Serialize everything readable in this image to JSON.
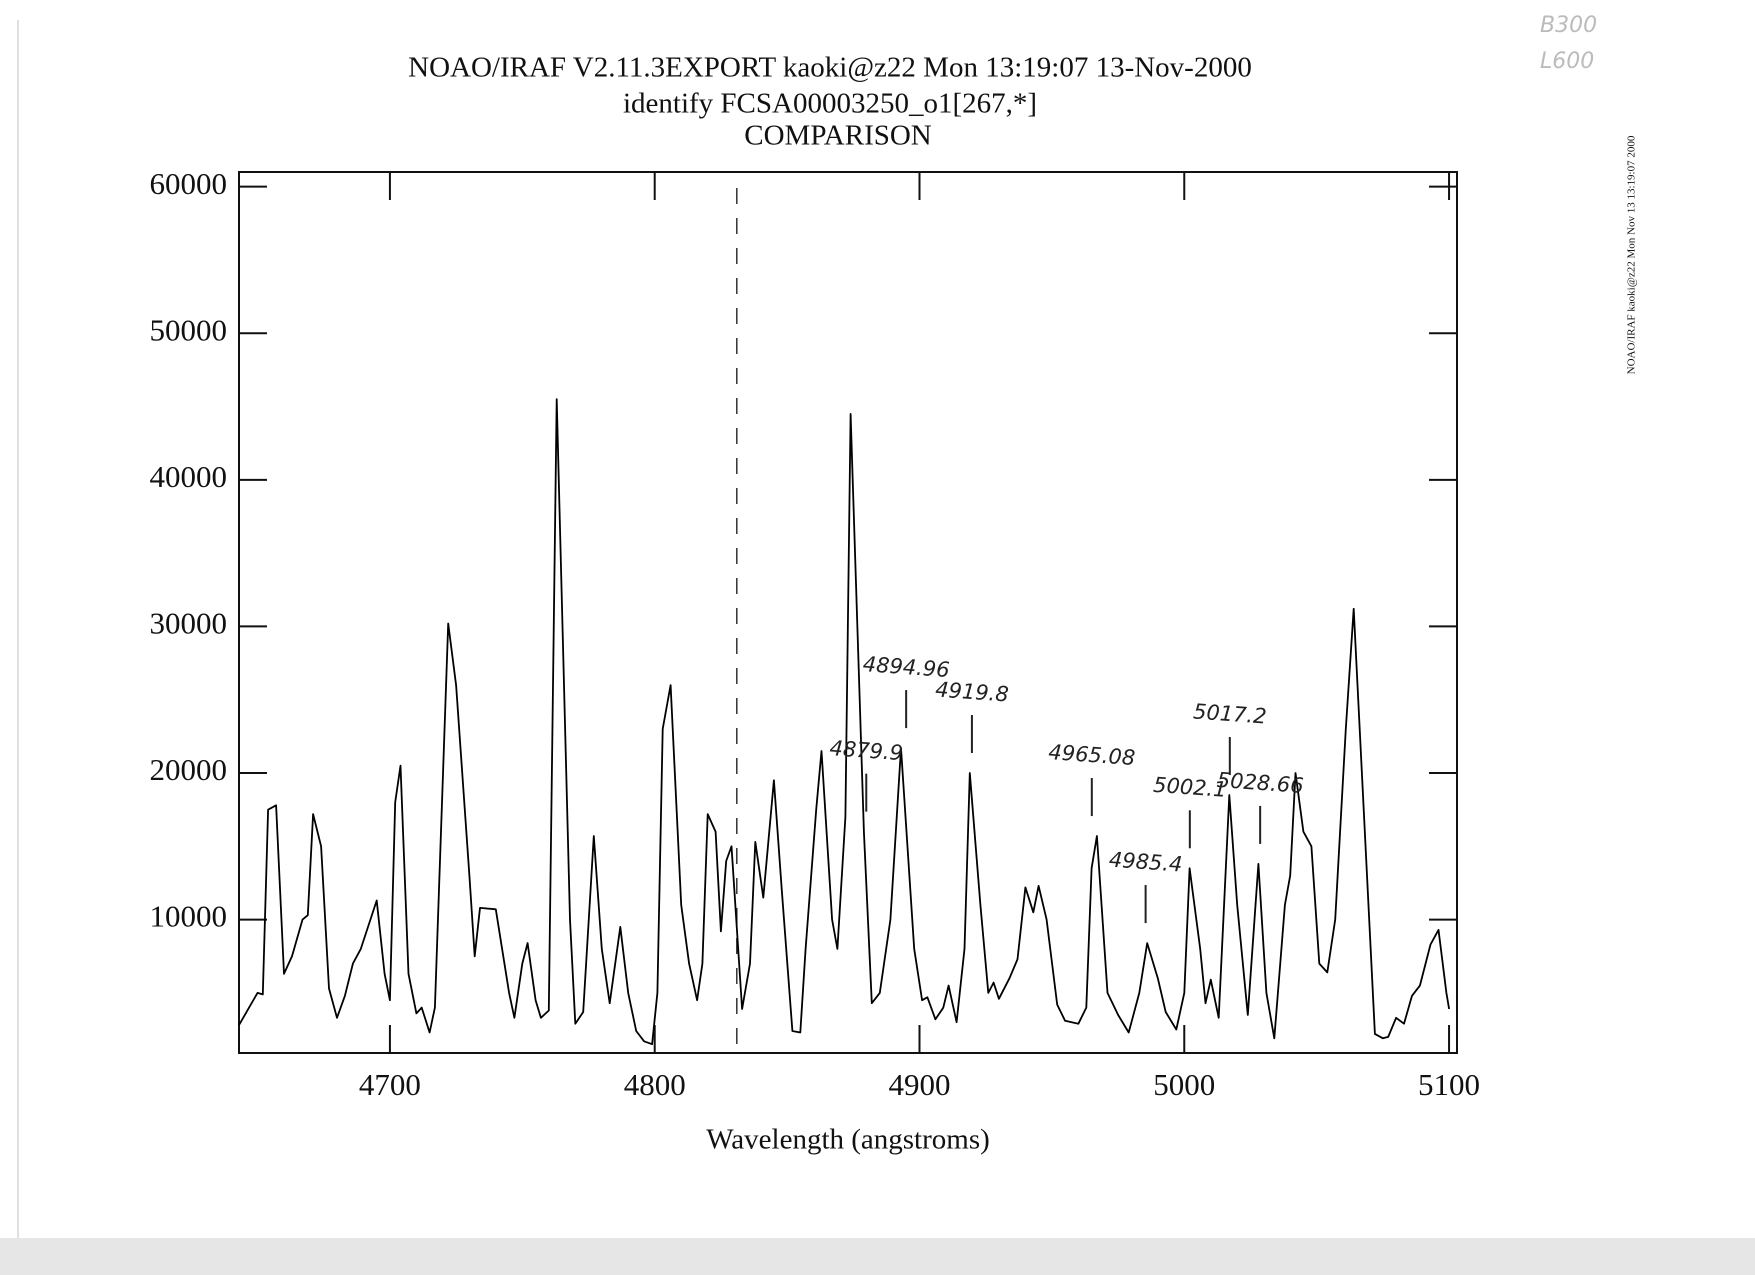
{
  "chart_data": {
    "type": "line",
    "title": "NOAO/IRAF V2.11.3EXPORT kaoki@z22 Mon 13:19:07 13-Nov-2000",
    "subtitle": "identify FCSA00003250_o1[267,*]",
    "subtitle2": "COMPARISON",
    "xlabel": "Wavelength (angstroms)",
    "side_text": "NOAO/IRAF kaoki@z22 Mon Nov 13 13:19:07 2000",
    "notes": [
      "B300",
      "L600"
    ],
    "color": "#000000",
    "xlim": [
      4643,
      5103
    ],
    "ylim": [
      900,
      61000
    ],
    "xticks": [
      4700,
      4800,
      4900,
      5000,
      5100
    ],
    "yticks": [
      10000,
      20000,
      30000,
      40000,
      50000,
      60000
    ],
    "dashed_line_x": 4831,
    "line_ids": [
      4879.9,
      4894.96,
      4919.8,
      4965.08,
      4985.4,
      5002.1,
      5017.2,
      5028.66
    ],
    "x": [
      4643,
      4650,
      4652,
      4654,
      4657,
      4660,
      4663,
      4667,
      4669,
      4671,
      4674,
      4677,
      4680,
      4683,
      4686,
      4689,
      4695,
      4698,
      4700,
      4702,
      4704,
      4707,
      4710,
      4712,
      4715,
      4717,
      4722,
      4725,
      4730,
      4732,
      4734,
      4740,
      4745,
      4747,
      4750,
      4752,
      4755,
      4757,
      4760,
      4763,
      4768,
      4770,
      4773,
      4777,
      4780,
      4783,
      4787,
      4790,
      4793,
      4796,
      4799,
      4801,
      4803,
      4806,
      4810,
      4813,
      4816,
      4818,
      4820,
      4823,
      4825,
      4827,
      4829,
      4833,
      4836,
      4838,
      4841,
      4845,
      4848,
      4852,
      4855,
      4857,
      4861,
      4863,
      4867,
      4869,
      4872,
      4874,
      4879,
      4882,
      4885,
      4889,
      4893,
      4898,
      4901,
      4903,
      4906,
      4909,
      4911,
      4914,
      4917,
      4919,
      4923,
      4926,
      4928,
      4930,
      4934,
      4937,
      4940,
      4943,
      4945,
      4948,
      4952,
      4955,
      4960,
      4963,
      4965,
      4967,
      4971,
      4975,
      4979,
      4983,
      4986,
      4990,
      4993,
      4997,
      5000,
      5002,
      5006,
      5008,
      5010,
      5013,
      5017,
      5020,
      5024,
      5028,
      5031,
      5034,
      5038,
      5040,
      5042,
      5045,
      5048,
      5051,
      5054,
      5057,
      5061,
      5064,
      5072,
      5075,
      5077,
      5080,
      5083,
      5086,
      5089,
      5093,
      5096,
      5099,
      5100
    ],
    "values": [
      2800,
      5000,
      4900,
      17500,
      17800,
      6300,
      7500,
      10000,
      10300,
      17200,
      15000,
      5300,
      3300,
      4800,
      7000,
      8000,
      11300,
      6300,
      4500,
      18000,
      20500,
      6300,
      3600,
      4000,
      2300,
      4000,
      30200,
      26000,
      13000,
      7500,
      10800,
      10700,
      5000,
      3300,
      7000,
      8400,
      4500,
      3300,
      3800,
      45500,
      10000,
      2900,
      3700,
      15700,
      8000,
      4300,
      9500,
      5000,
      2400,
      1700,
      1500,
      5000,
      23000,
      26000,
      11000,
      7000,
      4500,
      7000,
      17200,
      16000,
      9200,
      14000,
      15000,
      3900,
      7000,
      15300,
      11500,
      19500,
      12000,
      2400,
      2300,
      8000,
      17500,
      21500,
      10000,
      8000,
      17000,
      44500,
      16000,
      4300,
      5000,
      10000,
      21700,
      8000,
      4500,
      4700,
      3200,
      4000,
      5500,
      3000,
      8000,
      20000,
      11000,
      5000,
      5700,
      4600,
      6000,
      7300,
      12200,
      10500,
      12300,
      10000,
      4200,
      3100,
      2900,
      4000,
      13500,
      15700,
      5000,
      3500,
      2300,
      5000,
      8400,
      6000,
      3700,
      2500,
      5000,
      13500,
      8000,
      4300,
      5900,
      3300,
      18500,
      11000,
      3500,
      13800,
      5000,
      1900,
      11000,
      13000,
      20000,
      16000,
      15000,
      7000,
      6400,
      10000,
      23000,
      31200,
      2200,
      1900,
      2000,
      3300,
      2900,
      4800,
      5500,
      8300,
      9300,
      5000,
      3900
    ]
  }
}
